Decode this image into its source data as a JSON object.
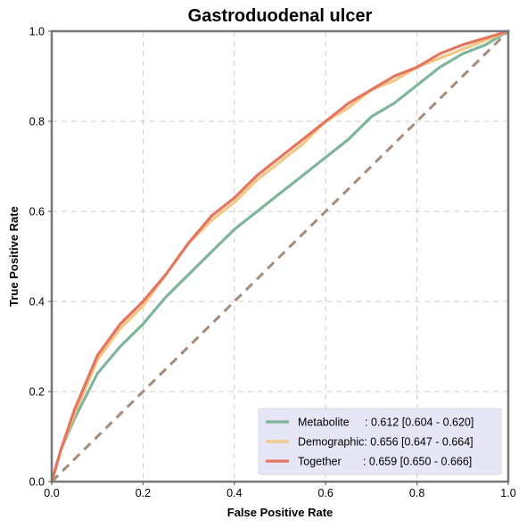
{
  "chart_data": {
    "type": "line",
    "title": "Gastroduodenal ulcer",
    "xlabel": "False Positive Rate",
    "ylabel": "True Positive Rate",
    "xlim": [
      0,
      1
    ],
    "ylim": [
      0,
      1
    ],
    "xticks": [
      "0.0",
      "0.2",
      "0.4",
      "0.6",
      "0.8",
      "1.0"
    ],
    "yticks": [
      "0.0",
      "0.2",
      "0.4",
      "0.6",
      "0.8",
      "1.0"
    ],
    "grid": true,
    "legend_position": "bottom-right",
    "series": [
      {
        "name": "Metabolite",
        "legend_label": "Metabolite     : 0.612 [0.604 - 0.620]",
        "color": "#7fb59a",
        "x": [
          0,
          0.02,
          0.05,
          0.1,
          0.15,
          0.2,
          0.25,
          0.3,
          0.35,
          0.4,
          0.45,
          0.5,
          0.55,
          0.6,
          0.65,
          0.7,
          0.75,
          0.8,
          0.85,
          0.9,
          0.95,
          1.0
        ],
        "y": [
          0,
          0.07,
          0.14,
          0.24,
          0.3,
          0.35,
          0.41,
          0.46,
          0.51,
          0.56,
          0.6,
          0.64,
          0.68,
          0.72,
          0.76,
          0.81,
          0.84,
          0.88,
          0.92,
          0.95,
          0.97,
          1.0
        ]
      },
      {
        "name": "Demographic",
        "legend_label": "Demographic: 0.656 [0.647 - 0.664]",
        "color": "#f5c785",
        "x": [
          0,
          0.02,
          0.05,
          0.1,
          0.15,
          0.2,
          0.25,
          0.3,
          0.35,
          0.4,
          0.45,
          0.5,
          0.55,
          0.6,
          0.65,
          0.7,
          0.75,
          0.8,
          0.85,
          0.9,
          0.95,
          1.0
        ],
        "y": [
          0,
          0.07,
          0.15,
          0.27,
          0.34,
          0.39,
          0.46,
          0.53,
          0.58,
          0.62,
          0.67,
          0.71,
          0.75,
          0.8,
          0.83,
          0.87,
          0.89,
          0.92,
          0.94,
          0.96,
          0.98,
          1.0
        ]
      },
      {
        "name": "Together",
        "legend_label": "Together       : 0.659 [0.650 - 0.666]",
        "color": "#e47560",
        "x": [
          0,
          0.02,
          0.05,
          0.1,
          0.15,
          0.2,
          0.25,
          0.3,
          0.35,
          0.4,
          0.45,
          0.5,
          0.55,
          0.6,
          0.65,
          0.7,
          0.75,
          0.8,
          0.85,
          0.9,
          0.95,
          1.0
        ],
        "y": [
          0,
          0.07,
          0.16,
          0.28,
          0.35,
          0.4,
          0.46,
          0.53,
          0.59,
          0.63,
          0.68,
          0.72,
          0.76,
          0.8,
          0.84,
          0.87,
          0.9,
          0.92,
          0.95,
          0.97,
          0.985,
          1.0
        ]
      }
    ],
    "reference_line": {
      "x": [
        0,
        1
      ],
      "y": [
        0,
        1
      ],
      "color": "#a68b7a",
      "style": "dashed"
    }
  }
}
